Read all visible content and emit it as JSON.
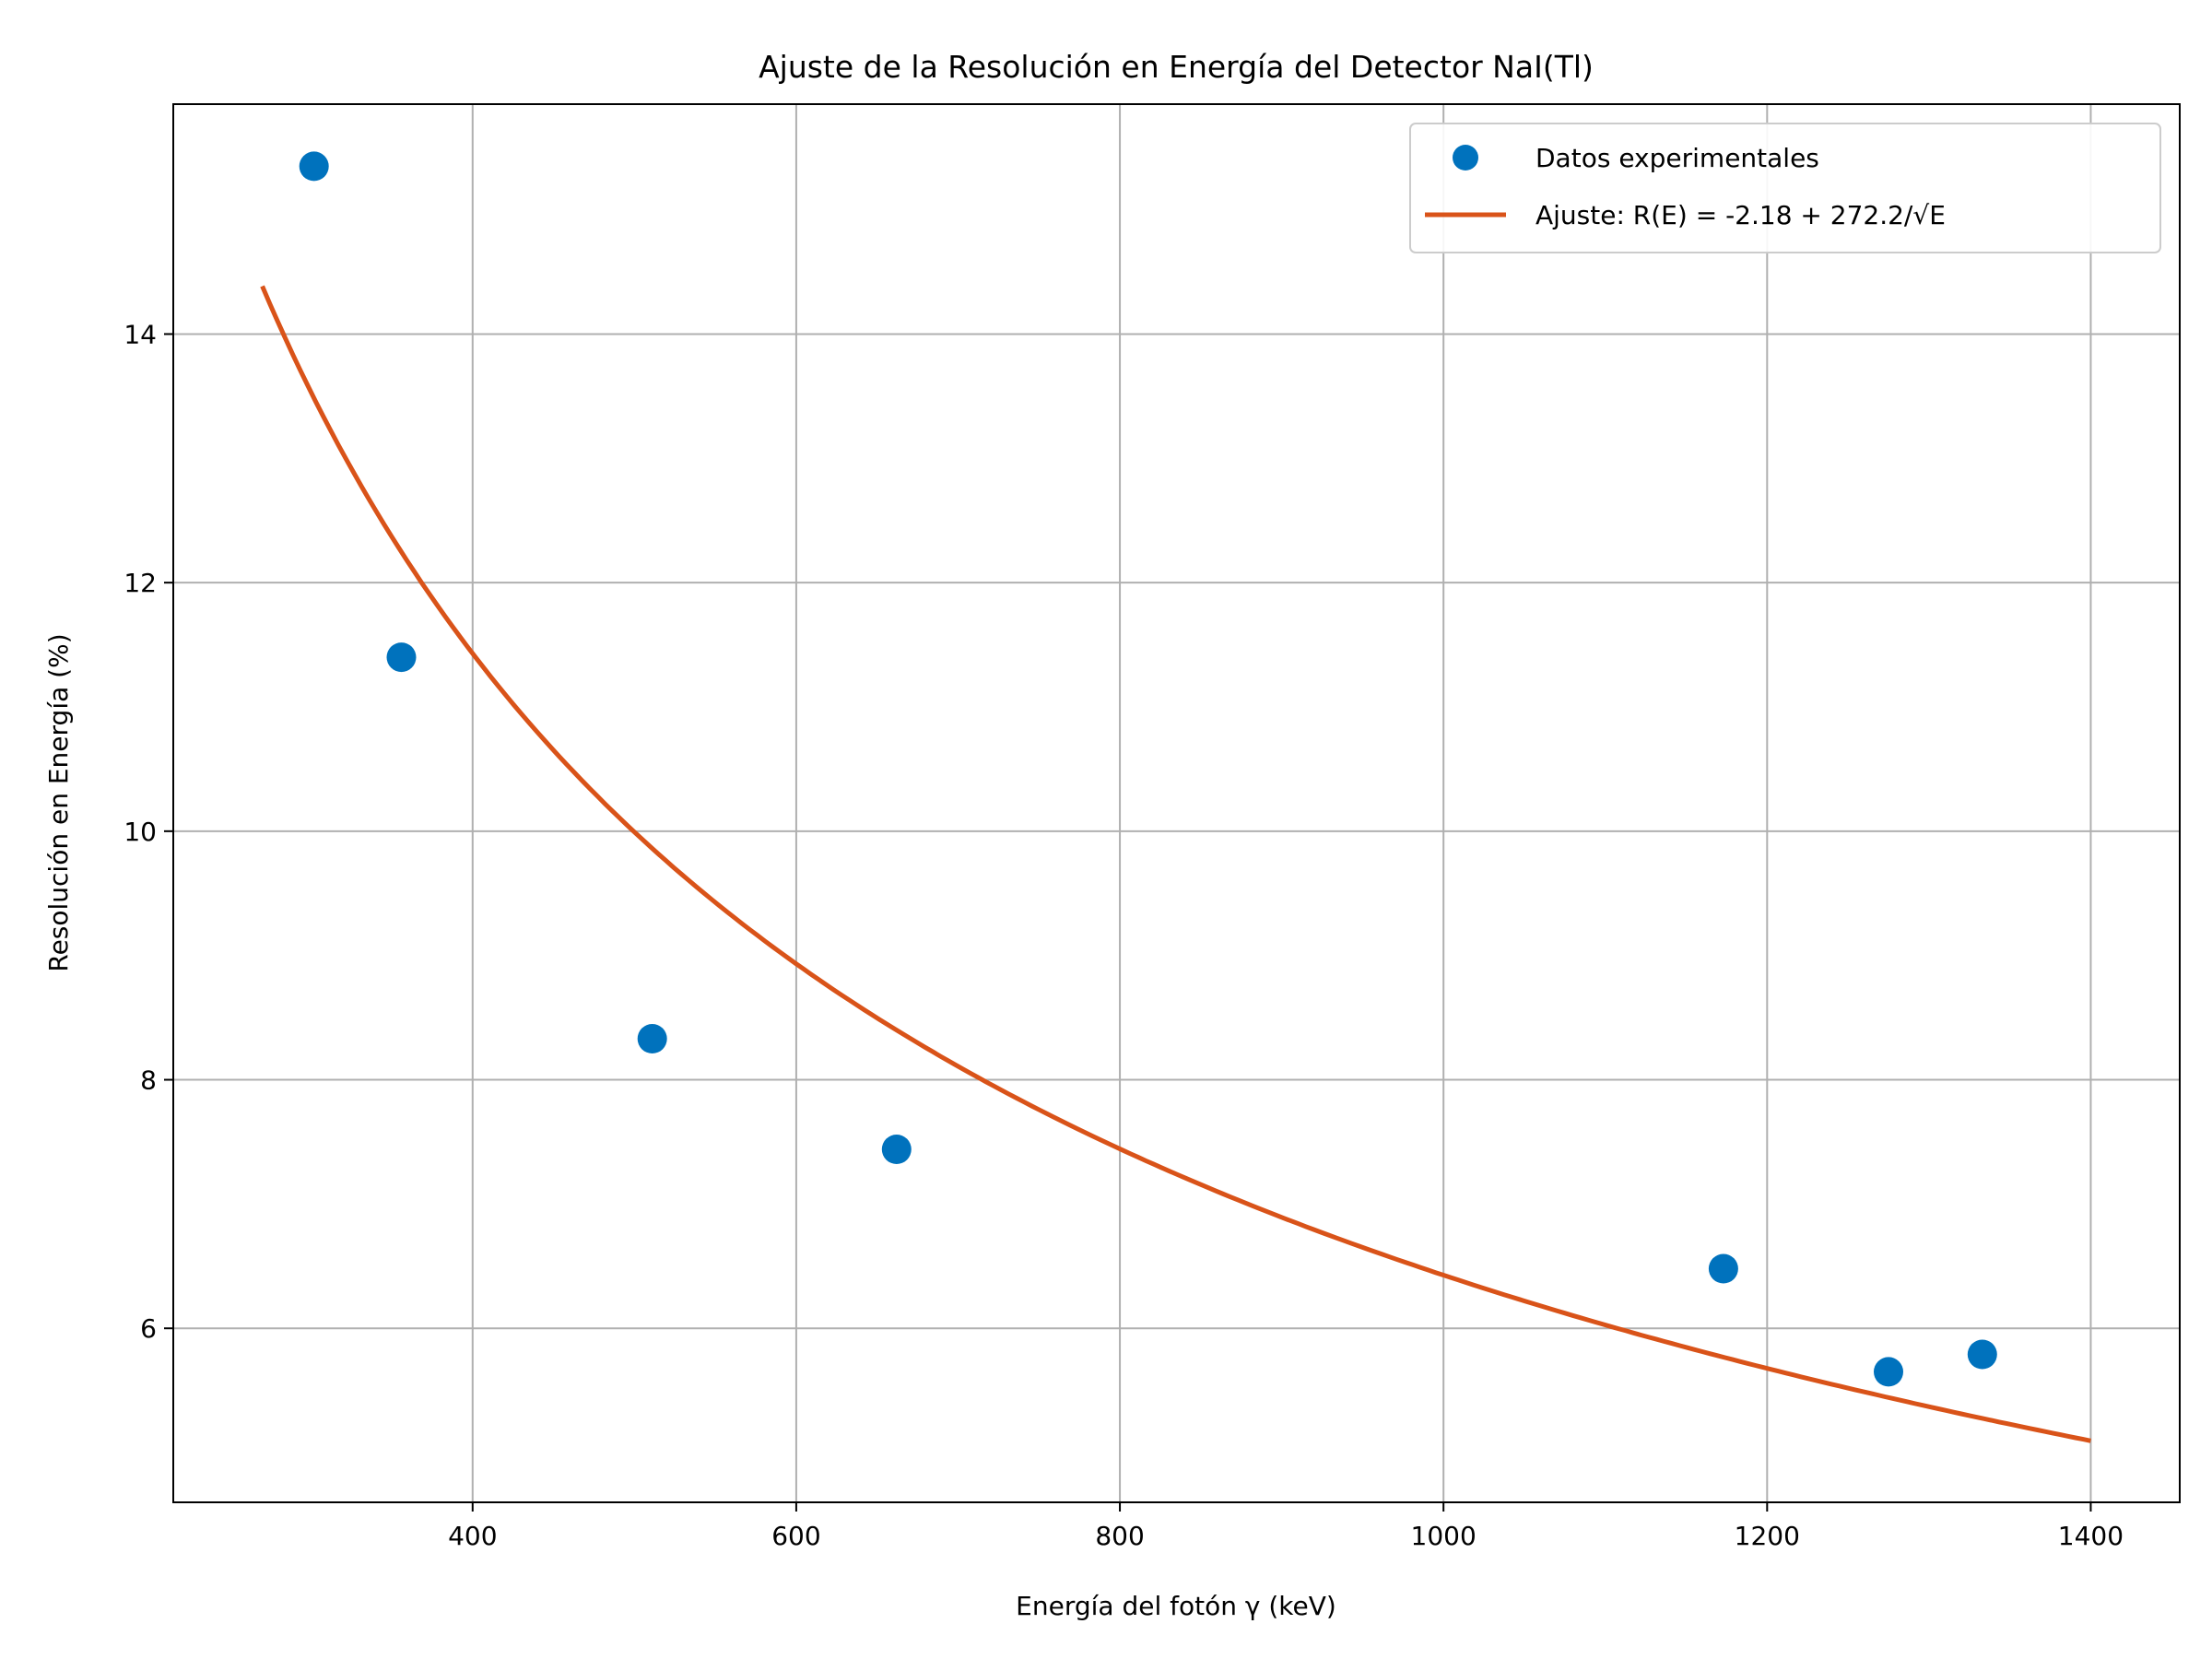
{
  "chart_data": {
    "type": "scatter",
    "title": "Ajuste de la Resolución en Energía del Detector NaI(Tl)",
    "xlabel": "Energía del fotón γ (keV)",
    "ylabel": "Resolución en Energía (%)",
    "xlim": [
      215,
      1455
    ],
    "ylim": [
      4.6,
      15.85
    ],
    "xticks": [
      400,
      600,
      800,
      1000,
      1200,
      1400
    ],
    "yticks": [
      6,
      8,
      10,
      12,
      14
    ],
    "grid": true,
    "legend_position": "top-right",
    "series": [
      {
        "name": "Datos experimentales",
        "kind": "scatter",
        "color": "#0072bd",
        "x": [
          302,
          356,
          511,
          662,
          1173,
          1275,
          1333
        ],
        "y": [
          15.35,
          11.4,
          8.33,
          7.44,
          6.48,
          5.65,
          5.79
        ]
      },
      {
        "name": "Ajuste: R(E) = -2.18 + 272.2/√E",
        "kind": "line",
        "color": "#d95319",
        "model": {
          "a": -2.18,
          "b": 272.2,
          "x_range": [
            270,
            1400
          ]
        }
      }
    ]
  }
}
